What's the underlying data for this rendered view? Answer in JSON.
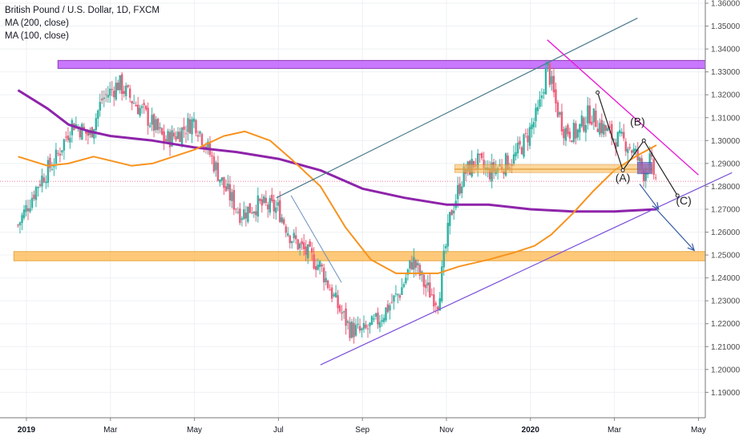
{
  "legend": {
    "title": "British Pound / U.S. Dollar, 1D, FXCM",
    "ma1": "MA (200, close)",
    "ma2": "MA (100, close)"
  },
  "colors": {
    "up": "#2fb3a4",
    "down": "#ef5b79",
    "ma200": "#8e24aa",
    "ma100": "#f7931e",
    "resistance_box": "#c060ff",
    "support_box": "#ffb74d",
    "upper_channel": "#4a7a8c",
    "lower_channel": "#7b4fd9",
    "wedge_top": "#e91ed4",
    "arrows": "#3a5ea8"
  },
  "chart_data": {
    "type": "candlestick",
    "title": "British Pound / U.S. Dollar, 1D, FXCM",
    "x_ticks": [
      "2019",
      "Mar",
      "May",
      "Jul",
      "Sep",
      "Nov",
      "2020",
      "Mar",
      "May"
    ],
    "y_ticks": [
      "1.19000",
      "1.20000",
      "1.21000",
      "1.22000",
      "1.23000",
      "1.24000",
      "1.25000",
      "1.26000",
      "1.27000",
      "1.28000",
      "1.29000",
      "1.30000",
      "1.31000",
      "1.32000",
      "1.33000",
      "1.34000",
      "1.35000",
      "1.36000"
    ],
    "ylim": [
      1.1865,
      1.3625
    ],
    "x_range_months": [
      0,
      16.8
    ],
    "current_price_line": 1.2822,
    "price_path_month_close": [
      [
        -0.2,
        1.263
      ],
      [
        0.3,
        1.282
      ],
      [
        0.7,
        1.292
      ],
      [
        1.1,
        1.308
      ],
      [
        1.5,
        1.302
      ],
      [
        1.8,
        1.318
      ],
      [
        2.2,
        1.325
      ],
      [
        2.5,
        1.318
      ],
      [
        2.8,
        1.312
      ],
      [
        3.3,
        1.3
      ],
      [
        3.6,
        1.303
      ],
      [
        4.0,
        1.309
      ],
      [
        4.3,
        1.297
      ],
      [
        4.7,
        1.28
      ],
      [
        5.1,
        1.268
      ],
      [
        5.5,
        1.272
      ],
      [
        6.0,
        1.27
      ],
      [
        6.3,
        1.258
      ],
      [
        6.6,
        1.252
      ],
      [
        7.0,
        1.245
      ],
      [
        7.4,
        1.228
      ],
      [
        7.7,
        1.218
      ],
      [
        8.0,
        1.216
      ],
      [
        8.3,
        1.22
      ],
      [
        8.6,
        1.227
      ],
      [
        8.9,
        1.234
      ],
      [
        9.2,
        1.248
      ],
      [
        9.5,
        1.236
      ],
      [
        9.8,
        1.23
      ],
      [
        10.1,
        1.268
      ],
      [
        10.4,
        1.285
      ],
      [
        10.7,
        1.291
      ],
      [
        11.0,
        1.286
      ],
      [
        11.3,
        1.289
      ],
      [
        11.6,
        1.292
      ],
      [
        11.9,
        1.301
      ],
      [
        12.2,
        1.313
      ],
      [
        12.4,
        1.333
      ],
      [
        12.6,
        1.316
      ],
      [
        12.8,
        1.305
      ],
      [
        13.1,
        1.303
      ],
      [
        13.4,
        1.312
      ],
      [
        13.7,
        1.306
      ],
      [
        14.0,
        1.301
      ],
      [
        14.3,
        1.299
      ],
      [
        14.5,
        1.294
      ],
      [
        14.7,
        1.286
      ],
      [
        14.85,
        1.291
      ],
      [
        15.0,
        1.282
      ]
    ],
    "ma200": [
      [
        -0.2,
        1.322
      ],
      [
        0.5,
        1.314
      ],
      [
        1.0,
        1.307
      ],
      [
        1.5,
        1.304
      ],
      [
        2.0,
        1.302
      ],
      [
        3.0,
        1.3
      ],
      [
        4.0,
        1.297
      ],
      [
        5.0,
        1.295
      ],
      [
        6.0,
        1.292
      ],
      [
        7.0,
        1.287
      ],
      [
        8.0,
        1.279
      ],
      [
        9.0,
        1.275
      ],
      [
        10.0,
        1.272
      ],
      [
        11.0,
        1.272
      ],
      [
        12.0,
        1.27
      ],
      [
        13.0,
        1.269
      ],
      [
        14.0,
        1.269
      ],
      [
        15.0,
        1.27
      ]
    ],
    "ma100": [
      [
        -0.2,
        1.293
      ],
      [
        0.5,
        1.289
      ],
      [
        1.0,
        1.29
      ],
      [
        1.6,
        1.293
      ],
      [
        2.5,
        1.289
      ],
      [
        3.0,
        1.29
      ],
      [
        3.5,
        1.293
      ],
      [
        4.0,
        1.296
      ],
      [
        4.7,
        1.302
      ],
      [
        5.2,
        1.304
      ],
      [
        5.8,
        1.3
      ],
      [
        6.3,
        1.292
      ],
      [
        7.0,
        1.28
      ],
      [
        7.6,
        1.262
      ],
      [
        8.2,
        1.248
      ],
      [
        8.8,
        1.242
      ],
      [
        9.3,
        1.242
      ],
      [
        9.8,
        1.242
      ],
      [
        10.3,
        1.245
      ],
      [
        11.0,
        1.248
      ],
      [
        11.6,
        1.251
      ],
      [
        12.1,
        1.254
      ],
      [
        12.5,
        1.259
      ],
      [
        13.0,
        1.268
      ],
      [
        13.5,
        1.278
      ],
      [
        14.0,
        1.287
      ],
      [
        14.5,
        1.293
      ],
      [
        15.0,
        1.298
      ]
    ],
    "zones": [
      {
        "name": "resistance",
        "x0": 0.75,
        "x1": 16.8,
        "y0": 1.3315,
        "y1": 1.335
      },
      {
        "name": "support",
        "x0": -0.3,
        "x1": 16.8,
        "y0": 1.2475,
        "y1": 1.2515
      }
    ],
    "lines": [
      {
        "name": "upper-channel",
        "points": [
          [
            5.95,
            1.275
          ],
          [
            14.55,
            1.3535
          ]
        ]
      },
      {
        "name": "lower-channel",
        "points": [
          [
            7.0,
            1.202
          ],
          [
            16.8,
            1.286
          ]
        ]
      },
      {
        "name": "wedge-top",
        "points": [
          [
            12.4,
            1.344
          ],
          [
            16.0,
            1.285
          ]
        ]
      },
      {
        "name": "neck-level",
        "points": [
          [
            10.2,
            1.2875
          ],
          [
            14.9,
            1.2875
          ]
        ]
      },
      {
        "name": "fall-line",
        "points": [
          [
            6.3,
            1.276
          ],
          [
            7.5,
            1.238
          ]
        ]
      }
    ],
    "elliott_waves": {
      "path": [
        [
          13.6,
          1.321
        ],
        [
          14.2,
          1.287
        ],
        [
          14.7,
          1.3
        ],
        [
          15.5,
          1.276
        ]
      ],
      "labels": [
        {
          "text": "(A)",
          "x": 14.2,
          "y": 1.282
        },
        {
          "text": "(B)",
          "x": 14.55,
          "y": 1.3065
        },
        {
          "text": "(C)",
          "x": 15.65,
          "y": 1.272
        }
      ]
    },
    "projection_arrows": [
      {
        "from": [
          14.6,
          1.281
        ],
        "to": [
          15.05,
          1.27
        ]
      },
      {
        "from": [
          15.0,
          1.27
        ],
        "to": [
          15.9,
          1.252
        ]
      }
    ]
  }
}
